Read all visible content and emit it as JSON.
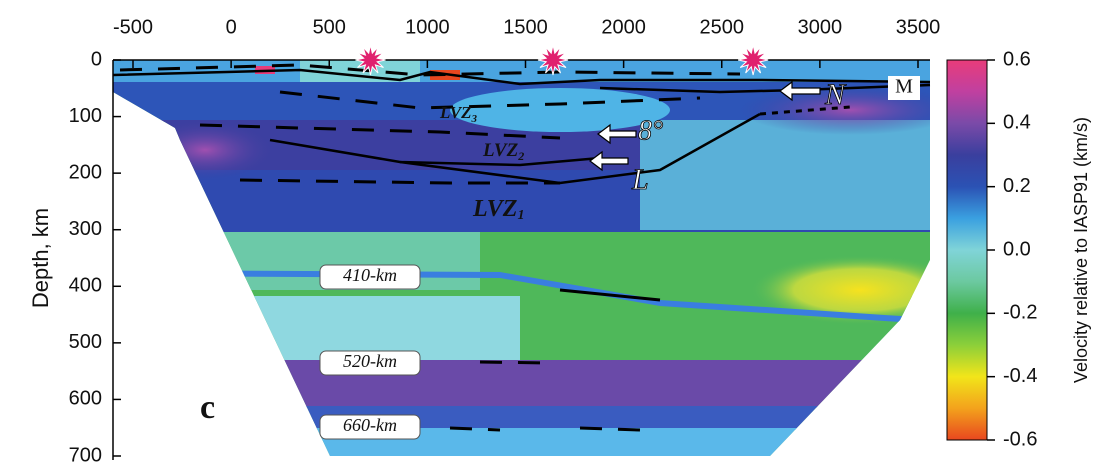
{
  "chart_data": {
    "type": "section",
    "xlim": [
      -600,
      3560
    ],
    "xticks": [
      -500,
      0,
      500,
      1000,
      1500,
      2000,
      2500,
      3000,
      3500
    ],
    "ylim": [
      700,
      0
    ],
    "yticks": [
      0,
      100,
      200,
      300,
      400,
      500,
      600,
      700
    ],
    "ylabel": "Depth, km",
    "stations_x": [
      710,
      1640,
      2660
    ],
    "colorbar": {
      "label": "Velocity relative to IASP91 (km/s)",
      "lim": [
        -0.6,
        0.6
      ],
      "ticks": [
        0.6,
        0.4,
        0.2,
        {
          "value": 0,
          "label": "0.0"
        },
        -0.2,
        -0.4,
        -0.6
      ],
      "colors": [
        "#e8471f",
        "#f3a21c",
        "#f2e51a",
        "#8ccf3a",
        "#3fb04a",
        "#6cc9a0",
        "#80d4d8",
        "#3aa0e0",
        "#2b52b4",
        "#3a3f9e",
        "#7a4aa8",
        "#c040a0",
        "#e83c7a"
      ]
    },
    "annotations": {
      "d410": "410-km",
      "d520": "520-km",
      "d660": "660-km",
      "panel": "c",
      "lvz1": {
        "main": "LVZ",
        "sub": "1"
      },
      "lvz2": {
        "main": "LVZ",
        "sub": "2"
      },
      "lvz3": {
        "main": "LVZ",
        "sub": "3"
      },
      "n": "N",
      "angle": "8°",
      "l": "L",
      "m": "M"
    }
  }
}
